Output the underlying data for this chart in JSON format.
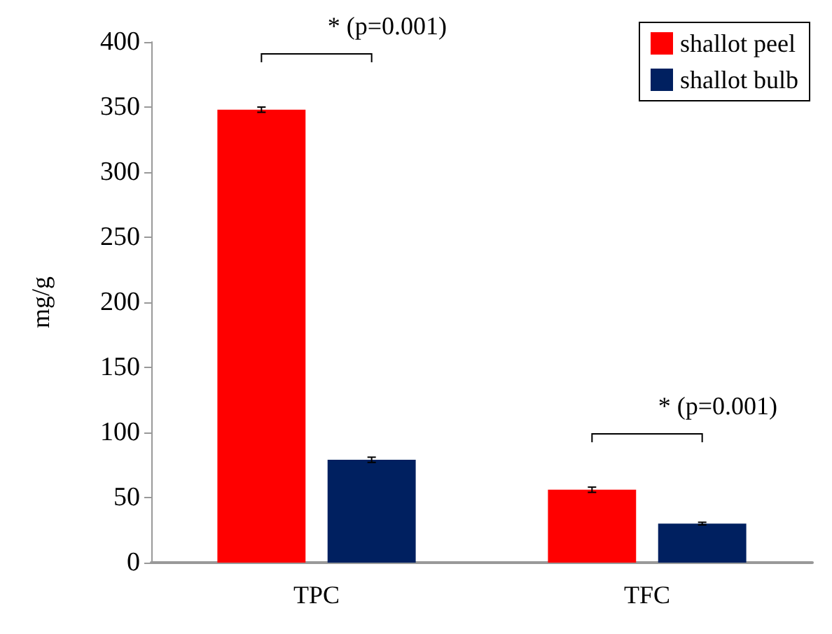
{
  "chart_data": {
    "type": "bar",
    "ylabel": "mg/g",
    "categories": [
      "TPC",
      "TFC"
    ],
    "series": [
      {
        "name": "shallot peel",
        "color": "#ff0000",
        "values": [
          348,
          56
        ],
        "errors": [
          2,
          2
        ]
      },
      {
        "name": "shallot bulb",
        "color": "#002060",
        "values": [
          79,
          30
        ],
        "errors": [
          2,
          1
        ]
      }
    ],
    "ylim": [
      0,
      400
    ],
    "yticks": [
      0,
      50,
      100,
      150,
      200,
      250,
      300,
      350,
      400
    ],
    "grid": false,
    "legend": "top right",
    "annotations": [
      "* (p=0.001)",
      "* (p=0.001)"
    ]
  }
}
